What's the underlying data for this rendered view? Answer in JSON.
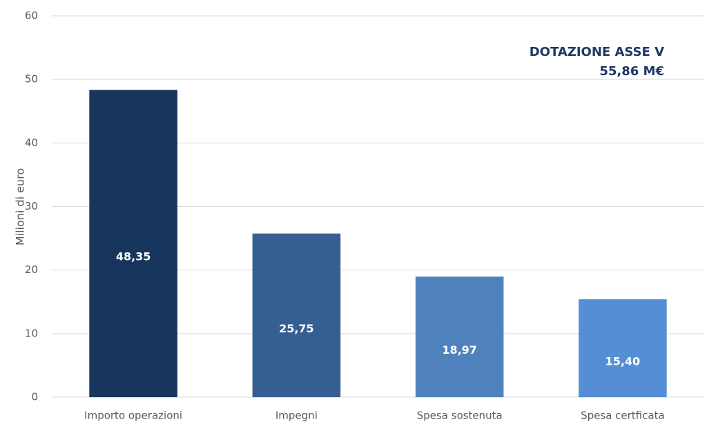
{
  "chart_data": {
    "type": "bar",
    "y_label": "Milioni di euro",
    "categories": [
      "Importo operazioni",
      "Impegni",
      "Spesa sostenuta",
      "Spesa certficata"
    ],
    "values": [
      48.35,
      25.75,
      18.97,
      15.4
    ],
    "value_labels": [
      "48,35",
      "25,75",
      "18,97",
      "15,40"
    ],
    "colors": [
      "#17365d",
      "#365f91",
      "#4f81bd",
      "#558ed5"
    ],
    "annotations": [
      "DOTAZIONE ASSE V",
      "55,86 M€"
    ],
    "ylim": [
      0,
      60
    ],
    "yticks": [
      0,
      10,
      20,
      30,
      40,
      50,
      60
    ],
    "grid": true
  }
}
